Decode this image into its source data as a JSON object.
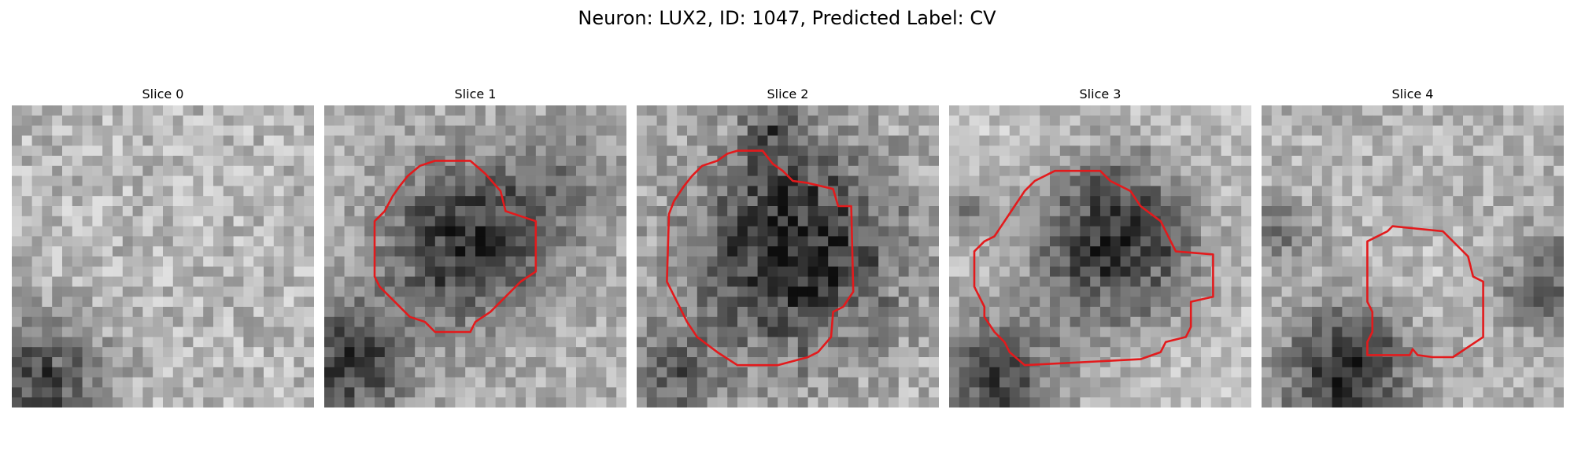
{
  "figure": {
    "title": "Neuron: LUX2, ID: 1047, Predicted Label: CV"
  },
  "panels": [
    {
      "title": "Slice 0",
      "has_contour": false
    },
    {
      "title": "Slice 1",
      "has_contour": true
    },
    {
      "title": "Slice 2",
      "has_contour": true
    },
    {
      "title": "Slice 3",
      "has_contour": true
    },
    {
      "title": "Slice 4",
      "has_contour": true
    }
  ],
  "colors": {
    "contour": "#e31a1c",
    "background": "#ffffff"
  }
}
